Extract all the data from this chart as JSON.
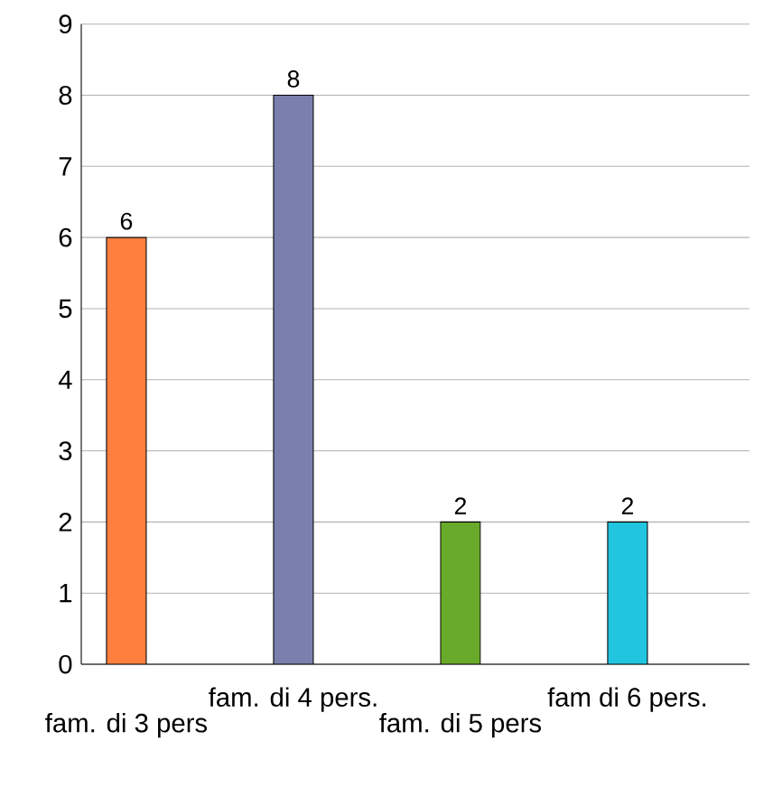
{
  "chart_data": {
    "type": "bar",
    "categories": [
      "fam. di 3 pers",
      "fam. di 4 pers.",
      "fam. di  5 pers",
      "fam di 6 pers."
    ],
    "values": [
      6,
      8,
      2,
      2
    ],
    "colors": [
      "#ff7f3f",
      "#7b7fad",
      "#6aaa2a",
      "#22c5e0"
    ],
    "ylim": [
      0,
      9
    ],
    "yticks": [
      0,
      1,
      2,
      3,
      4,
      5,
      6,
      7,
      8,
      9
    ],
    "grid": "y",
    "data_labels": true
  }
}
